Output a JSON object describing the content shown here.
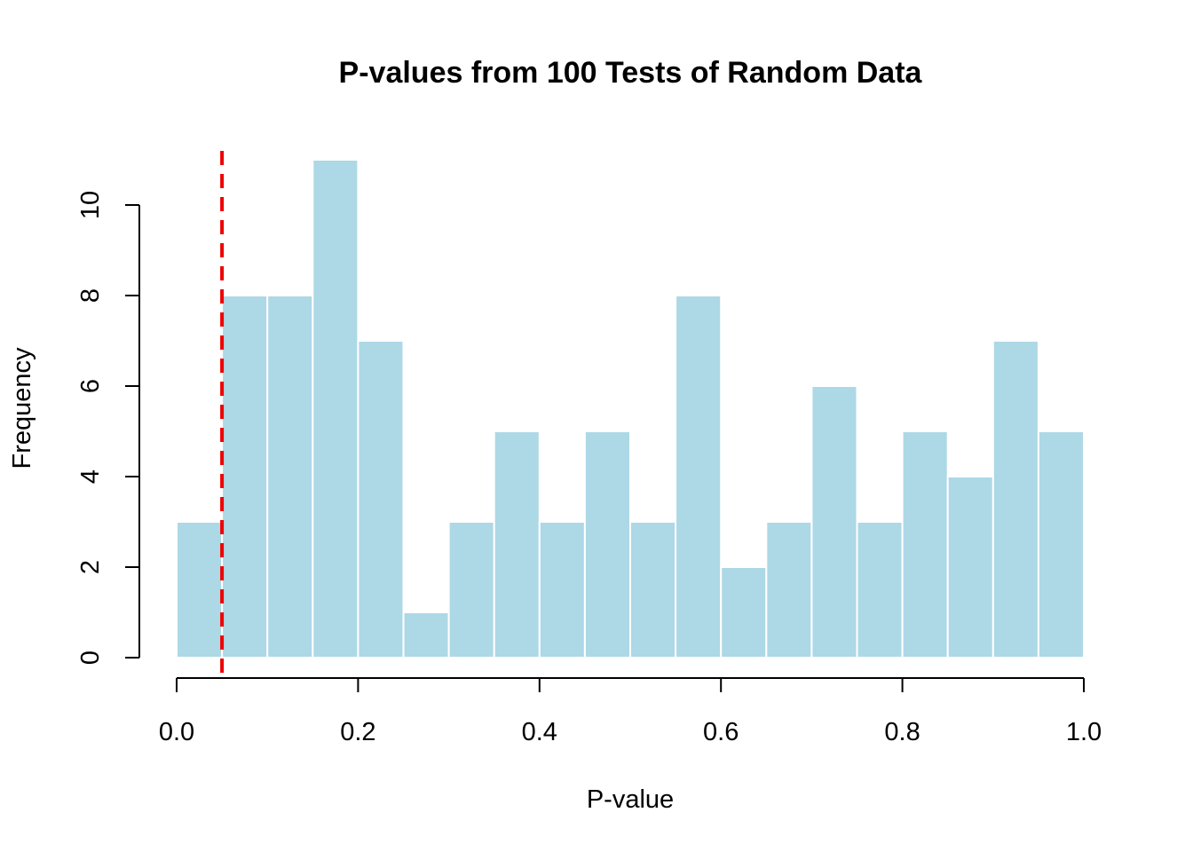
{
  "chart_data": {
    "type": "bar",
    "title": "P-values from 100 Tests of Random Data",
    "xlabel": "P-value",
    "ylabel": "Frequency",
    "bins": [
      [
        0.0,
        0.05
      ],
      [
        0.05,
        0.1
      ],
      [
        0.1,
        0.15
      ],
      [
        0.15,
        0.2
      ],
      [
        0.2,
        0.25
      ],
      [
        0.25,
        0.3
      ],
      [
        0.3,
        0.35
      ],
      [
        0.35,
        0.4
      ],
      [
        0.4,
        0.45
      ],
      [
        0.45,
        0.5
      ],
      [
        0.5,
        0.55
      ],
      [
        0.55,
        0.6
      ],
      [
        0.6,
        0.65
      ],
      [
        0.65,
        0.7
      ],
      [
        0.7,
        0.75
      ],
      [
        0.75,
        0.8
      ],
      [
        0.8,
        0.85
      ],
      [
        0.85,
        0.9
      ],
      [
        0.9,
        0.95
      ],
      [
        0.95,
        1.0
      ]
    ],
    "values": [
      3,
      8,
      8,
      11,
      7,
      1,
      3,
      5,
      3,
      5,
      3,
      8,
      2,
      3,
      6,
      3,
      5,
      4,
      7,
      5
    ],
    "xlim": [
      0,
      1
    ],
    "ylim": [
      0,
      11
    ],
    "x_ticks": [
      0.0,
      0.2,
      0.4,
      0.6,
      0.8,
      1.0
    ],
    "x_tick_labels": [
      "0.0",
      "0.2",
      "0.4",
      "0.6",
      "0.8",
      "1.0"
    ],
    "y_ticks": [
      0,
      2,
      4,
      6,
      8,
      10
    ],
    "y_tick_labels": [
      "0",
      "2",
      "4",
      "6",
      "8",
      "10"
    ],
    "reference_line": {
      "x": 0.05,
      "style": "dashed",
      "color": "#ee0000"
    },
    "bar_color": "#add8e6",
    "bar_border_color": "#ffffff",
    "grid": false,
    "legend": "none"
  }
}
